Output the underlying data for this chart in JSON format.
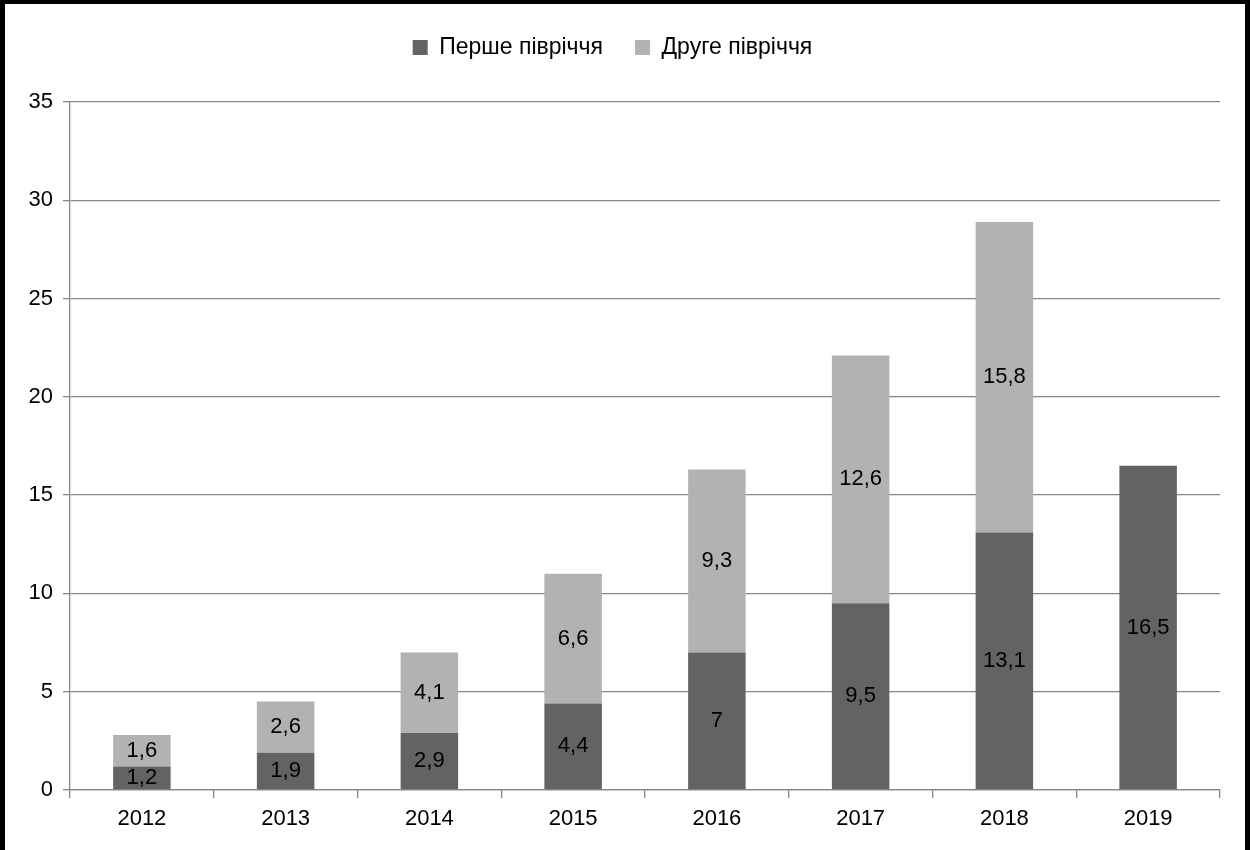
{
  "chart_data": {
    "type": "bar",
    "categories": [
      "2012",
      "2013",
      "2014",
      "2015",
      "2016",
      "2017",
      "2018",
      "2019"
    ],
    "stacked": true,
    "series": [
      {
        "name": "Перше півріччя",
        "color": "#636363",
        "values": [
          1.2,
          1.9,
          2.9,
          4.4,
          7,
          9.5,
          13.1,
          16.5
        ],
        "value_labels": [
          "1,2",
          "1,9",
          "2,9",
          "4,4",
          "7",
          "9,5",
          "13,1",
          "16,5"
        ]
      },
      {
        "name": "Друге півріччя",
        "color": "#b2b2b2",
        "values": [
          1.6,
          2.6,
          4.1,
          6.6,
          9.3,
          12.6,
          15.8,
          null
        ],
        "value_labels": [
          "1,6",
          "2,6",
          "4,1",
          "6,6",
          "9,3",
          "12,6",
          "15,8",
          null
        ]
      }
    ],
    "ylim": [
      0,
      35
    ],
    "yticks": [
      0,
      5,
      10,
      15,
      20,
      25,
      30,
      35
    ],
    "grid": "y",
    "legend": "top"
  }
}
